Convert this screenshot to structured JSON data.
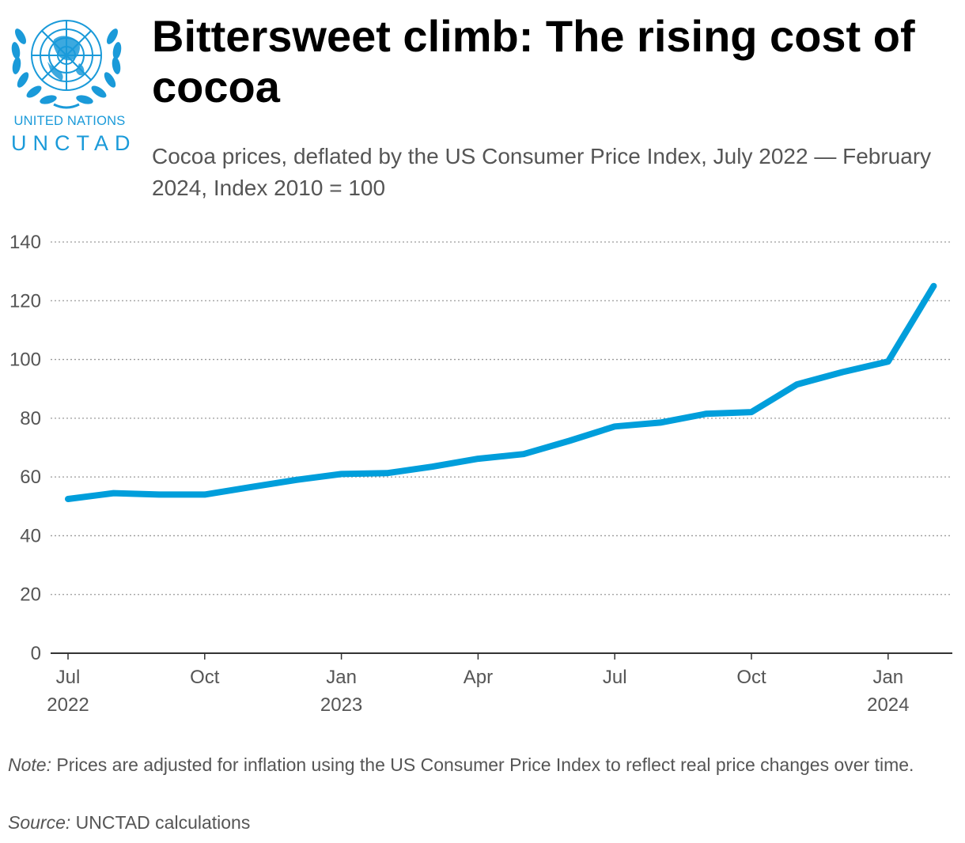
{
  "logo": {
    "org_line": "UNITED NATIONS",
    "org_name": "UNCTAD",
    "emblem_icon": "un-emblem-icon",
    "color": "#1a9ad9"
  },
  "title": "Bittersweet climb: The rising cost of cocoa",
  "subtitle": "Cocoa prices, deflated by the US Consumer Price Index, July 2022 — February 2024, Index 2010 = 100",
  "note": {
    "label": "Note:",
    "text": " Prices are adjusted for inflation using the US Consumer Price Index to reflect real price changes over time."
  },
  "source": {
    "label": "Source:",
    "text": " UNCTAD calculations"
  },
  "chart_data": {
    "type": "line",
    "x": [
      "2022-07",
      "2022-08",
      "2022-09",
      "2022-10",
      "2022-11",
      "2022-12",
      "2023-01",
      "2023-02",
      "2023-03",
      "2023-04",
      "2023-05",
      "2023-06",
      "2023-07",
      "2023-08",
      "2023-09",
      "2023-10",
      "2023-11",
      "2023-12",
      "2024-01",
      "2024-02"
    ],
    "series": [
      {
        "values": [
          52.5,
          54.5,
          54.0,
          54.0,
          56.5,
          59.0,
          61.0,
          61.3,
          63.5,
          66.2,
          67.8,
          72.3,
          77.2,
          78.5,
          81.5,
          82.1,
          91.5,
          95.7,
          99.3,
          125.0
        ],
        "color": "#009edb"
      }
    ],
    "x_ticks": [
      {
        "x": "2022-07",
        "line1": "Jul",
        "line2": "2022"
      },
      {
        "x": "2022-10",
        "line1": "Oct",
        "line2": ""
      },
      {
        "x": "2023-01",
        "line1": "Jan",
        "line2": "2023"
      },
      {
        "x": "2023-04",
        "line1": "Apr",
        "line2": ""
      },
      {
        "x": "2023-07",
        "line1": "Jul",
        "line2": ""
      },
      {
        "x": "2023-10",
        "line1": "Oct",
        "line2": ""
      },
      {
        "x": "2024-01",
        "line1": "Jan",
        "line2": "2024"
      }
    ],
    "y_ticks": [
      "0",
      "20",
      "40",
      "60",
      "80",
      "100",
      "120",
      "140"
    ],
    "ylim": [
      0,
      140
    ],
    "grid": "dotted-horizontal",
    "xlabel": "",
    "ylabel": ""
  }
}
